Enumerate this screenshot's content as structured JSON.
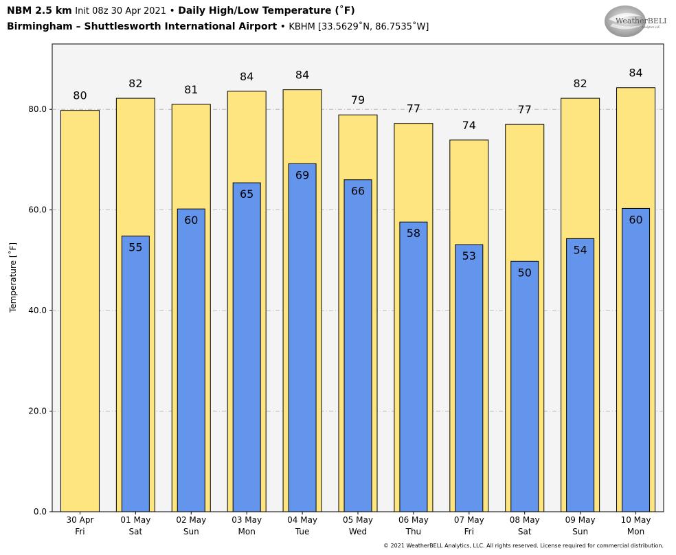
{
  "header": {
    "model": "NBM 2.5 km",
    "init": "Init 08z 30 Apr 2021",
    "bullet1": "•",
    "product": "Daily High/Low Temperature (˚F)",
    "location": "Birmingham – Shuttlesworth International Airport",
    "bullet2": "•",
    "station": "KBHM [33.5629˚N, 86.7535˚W]"
  },
  "logo": {
    "text": "WeatherBELL",
    "sub": "Analytics LLC"
  },
  "footer": {
    "copyright": "© 2021 WeatherBELL Analytics, LLC. All rights reserved. License required for commercial distribution."
  },
  "chart_data": {
    "type": "bar",
    "ylabel": "Temperature [˚F]",
    "ylim": [
      0,
      93
    ],
    "yticks": [
      "0.0",
      "20.0",
      "40.0",
      "60.0",
      "80.0"
    ],
    "ytick_values": [
      0,
      20,
      40,
      60,
      80
    ],
    "grid": true,
    "categories": [
      {
        "date": "30 Apr",
        "day": "Fri"
      },
      {
        "date": "01 May",
        "day": "Sat"
      },
      {
        "date": "02 May",
        "day": "Sun"
      },
      {
        "date": "03 May",
        "day": "Mon"
      },
      {
        "date": "04 May",
        "day": "Tue"
      },
      {
        "date": "05 May",
        "day": "Wed"
      },
      {
        "date": "06 May",
        "day": "Thu"
      },
      {
        "date": "07 May",
        "day": "Fri"
      },
      {
        "date": "08 May",
        "day": "Sat"
      },
      {
        "date": "09 May",
        "day": "Sun"
      },
      {
        "date": "10 May",
        "day": "Mon"
      }
    ],
    "series": [
      {
        "values": [
          79.8,
          82.2,
          81.0,
          83.6,
          83.9,
          78.9,
          77.2,
          73.9,
          77.0,
          82.2,
          84.3
        ],
        "labels": [
          "80",
          "82",
          "81",
          "84",
          "84",
          "79",
          "77",
          "74",
          "77",
          "82",
          "84"
        ],
        "color": "#FFE57F"
      },
      {
        "values": [
          null,
          54.8,
          60.2,
          65.4,
          69.2,
          66.0,
          57.6,
          53.1,
          49.8,
          54.3,
          60.3
        ],
        "labels": [
          "",
          "55",
          "60",
          "65",
          "69",
          "66",
          "58",
          "53",
          "50",
          "54",
          "60"
        ],
        "color": "#6495ED"
      }
    ]
  }
}
